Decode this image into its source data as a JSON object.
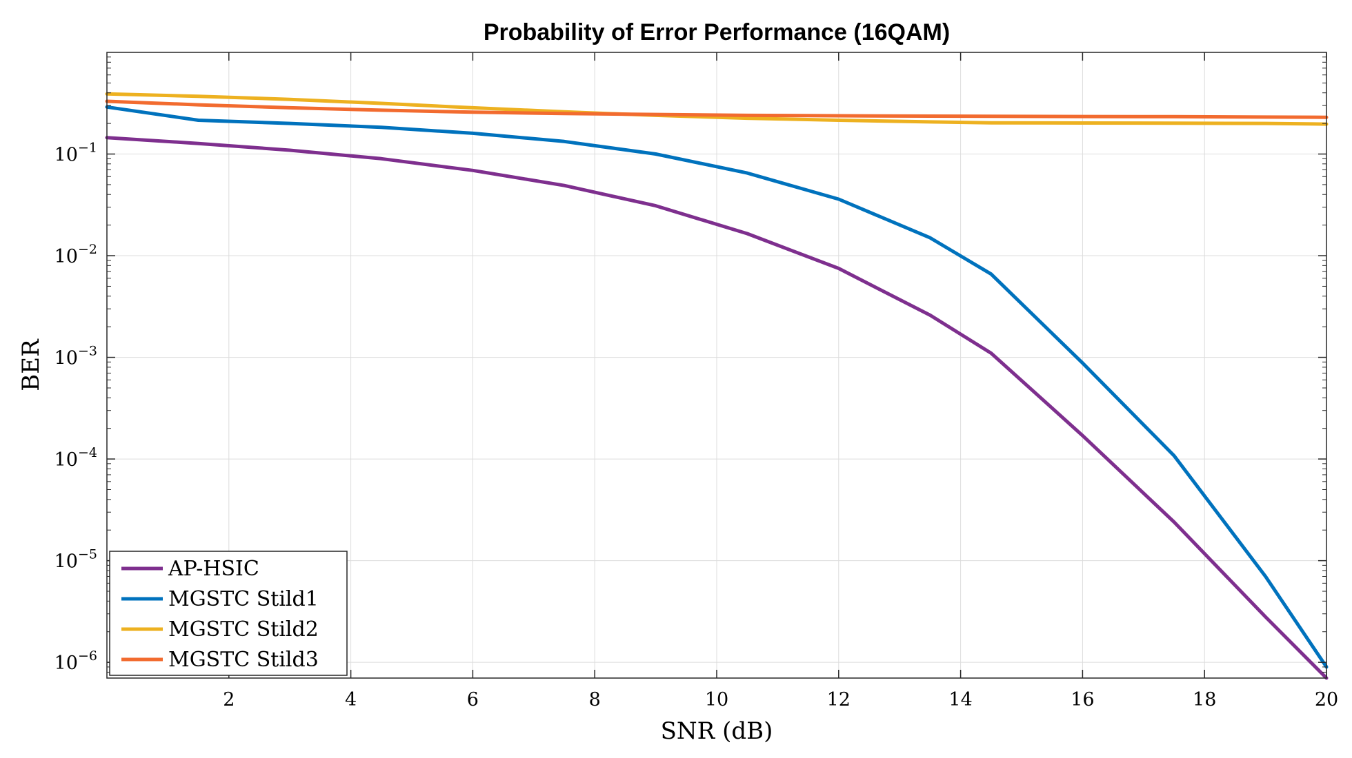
{
  "chart_data": {
    "type": "line",
    "title": "Probability of Error Performance (16QAM)",
    "xlabel": "SNR (dB)",
    "ylabel": "BER",
    "yscale": "log",
    "xlim": [
      0,
      20
    ],
    "ylim": [
      7e-07,
      1
    ],
    "grid": true,
    "legend_position": "bottom-left",
    "x_ticks": [
      2,
      4,
      6,
      8,
      10,
      12,
      14,
      16,
      18,
      20
    ],
    "y_ticks": [
      {
        "value": 0.1,
        "base": "10",
        "exp": "−1"
      },
      {
        "value": 0.01,
        "base": "10",
        "exp": "−2"
      },
      {
        "value": 0.001,
        "base": "10",
        "exp": "−3"
      },
      {
        "value": 0.0001,
        "base": "10",
        "exp": "−4"
      },
      {
        "value": 1e-05,
        "base": "10",
        "exp": "−5"
      },
      {
        "value": 1e-06,
        "base": "10",
        "exp": "−6"
      }
    ],
    "x": [
      0,
      1.5,
      3,
      4.5,
      6,
      7.5,
      9,
      10.5,
      12,
      13.5,
      14.5,
      16,
      17.5,
      19,
      20
    ],
    "series": [
      {
        "name": "AP-HSIC",
        "color": "#7E2F8E",
        "values": [
          0.145,
          0.127,
          0.109,
          0.09,
          0.069,
          0.049,
          0.031,
          0.0165,
          0.0075,
          0.0026,
          0.0011,
          0.00017,
          2.4e-05,
          2.8e-06,
          7e-07
        ]
      },
      {
        "name": "MGSTC Stild1",
        "color": "#0072BD",
        "values": [
          0.29,
          0.215,
          0.2,
          0.183,
          0.16,
          0.133,
          0.1,
          0.065,
          0.036,
          0.015,
          0.0066,
          0.00088,
          0.000108,
          7e-06,
          9e-07
        ]
      },
      {
        "name": "MGSTC Stild2",
        "color": "#EDB120",
        "values": [
          0.39,
          0.37,
          0.345,
          0.315,
          0.285,
          0.26,
          0.24,
          0.225,
          0.215,
          0.207,
          0.203,
          0.202,
          0.201,
          0.2,
          0.197
        ]
      },
      {
        "name": "MGSTC Stild3",
        "color": "#F26B2F",
        "values": [
          0.33,
          0.305,
          0.285,
          0.27,
          0.258,
          0.25,
          0.245,
          0.24,
          0.238,
          0.236,
          0.235,
          0.234,
          0.233,
          0.231,
          0.23
        ]
      }
    ]
  }
}
